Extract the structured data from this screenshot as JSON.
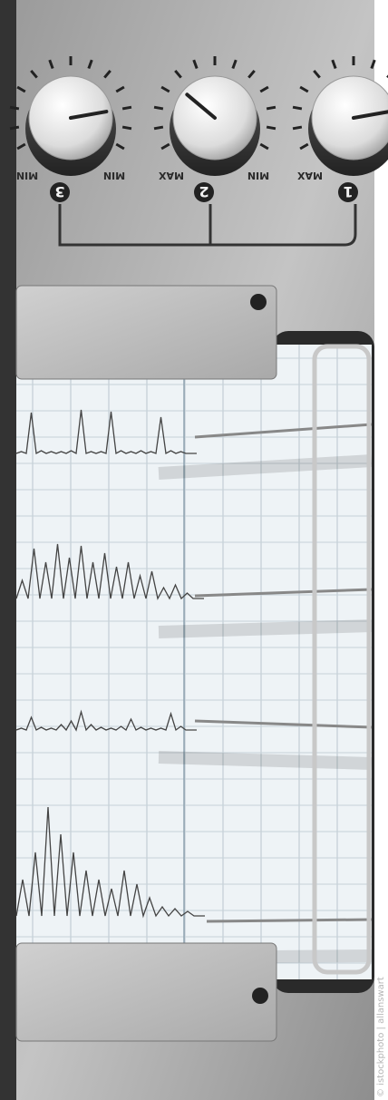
{
  "knobs": [
    {
      "number": "3",
      "left_label": "MIN",
      "right_label": "MIN"
    },
    {
      "number": "2",
      "left_label": "MAX",
      "right_label": "MIN"
    },
    {
      "number": "1",
      "left_label": "MAX"
    }
  ],
  "credit": "© istockphoto | allanswart"
}
